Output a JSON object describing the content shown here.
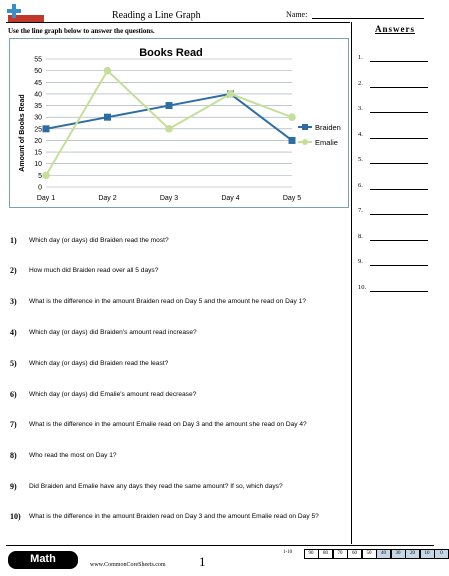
{
  "header": {
    "title": "Reading a Line Graph",
    "name_label": "Name:",
    "instructions": "Use the line graph below to answer the questions."
  },
  "answers": {
    "title": "Answers",
    "numbers": [
      "1.",
      "2.",
      "3.",
      "4.",
      "5.",
      "6.",
      "7.",
      "8.",
      "9.",
      "10."
    ]
  },
  "chart_data": {
    "type": "line",
    "title": "Books Read",
    "ylabel": "Amount of Books Read",
    "xlabel": "",
    "categories": [
      "Day 1",
      "Day 2",
      "Day 3",
      "Day 4",
      "Day 5"
    ],
    "ylim": [
      0,
      55
    ],
    "yticks": [
      0,
      5,
      10,
      15,
      20,
      25,
      30,
      35,
      40,
      45,
      50,
      55
    ],
    "grid": "horizontal",
    "legend_position": "right",
    "series": [
      {
        "name": "Braiden",
        "values": [
          25,
          30,
          35,
          40,
          20
        ],
        "color": "#2e6da4",
        "marker": "square"
      },
      {
        "name": "Emalie",
        "values": [
          5,
          50,
          25,
          40,
          30
        ],
        "color": "#c5df98",
        "marker": "circle"
      }
    ]
  },
  "questions": [
    {
      "num": "1)",
      "text": "Which day (or days) did Braiden read the most?"
    },
    {
      "num": "2)",
      "text": "How much did Braiden read over all 5 days?"
    },
    {
      "num": "3)",
      "text": "What is the difference in the amount Braiden read on Day 5 and the amount he read on Day 1?"
    },
    {
      "num": "4)",
      "text": "Which day (or days) did Braiden's amount read increase?"
    },
    {
      "num": "5)",
      "text": "Which day (or days) did Braiden read the least?"
    },
    {
      "num": "6)",
      "text": "Which day (or days) did Emalie's amount read decrease?"
    },
    {
      "num": "7)",
      "text": "What is the difference in the amount Emalie read on Day 3 and the amount she read on Day 4?"
    },
    {
      "num": "8)",
      "text": "Who read the most on Day 1?"
    },
    {
      "num": "9)",
      "text": "Did Braiden and Emalie have any days they read the same amount? If so, which days?"
    },
    {
      "num": "10)",
      "text": "What is the difference in the amount Braiden read on Day 3 and the amount Emalie read on Day 5?"
    }
  ],
  "footer": {
    "subject": "Math",
    "site": "www.CommonCoreSheets.com",
    "page": "1",
    "score_range": "1-10",
    "scores": [
      "90",
      "80",
      "70",
      "60",
      "50",
      "40",
      "30",
      "20",
      "10",
      "0"
    ]
  }
}
